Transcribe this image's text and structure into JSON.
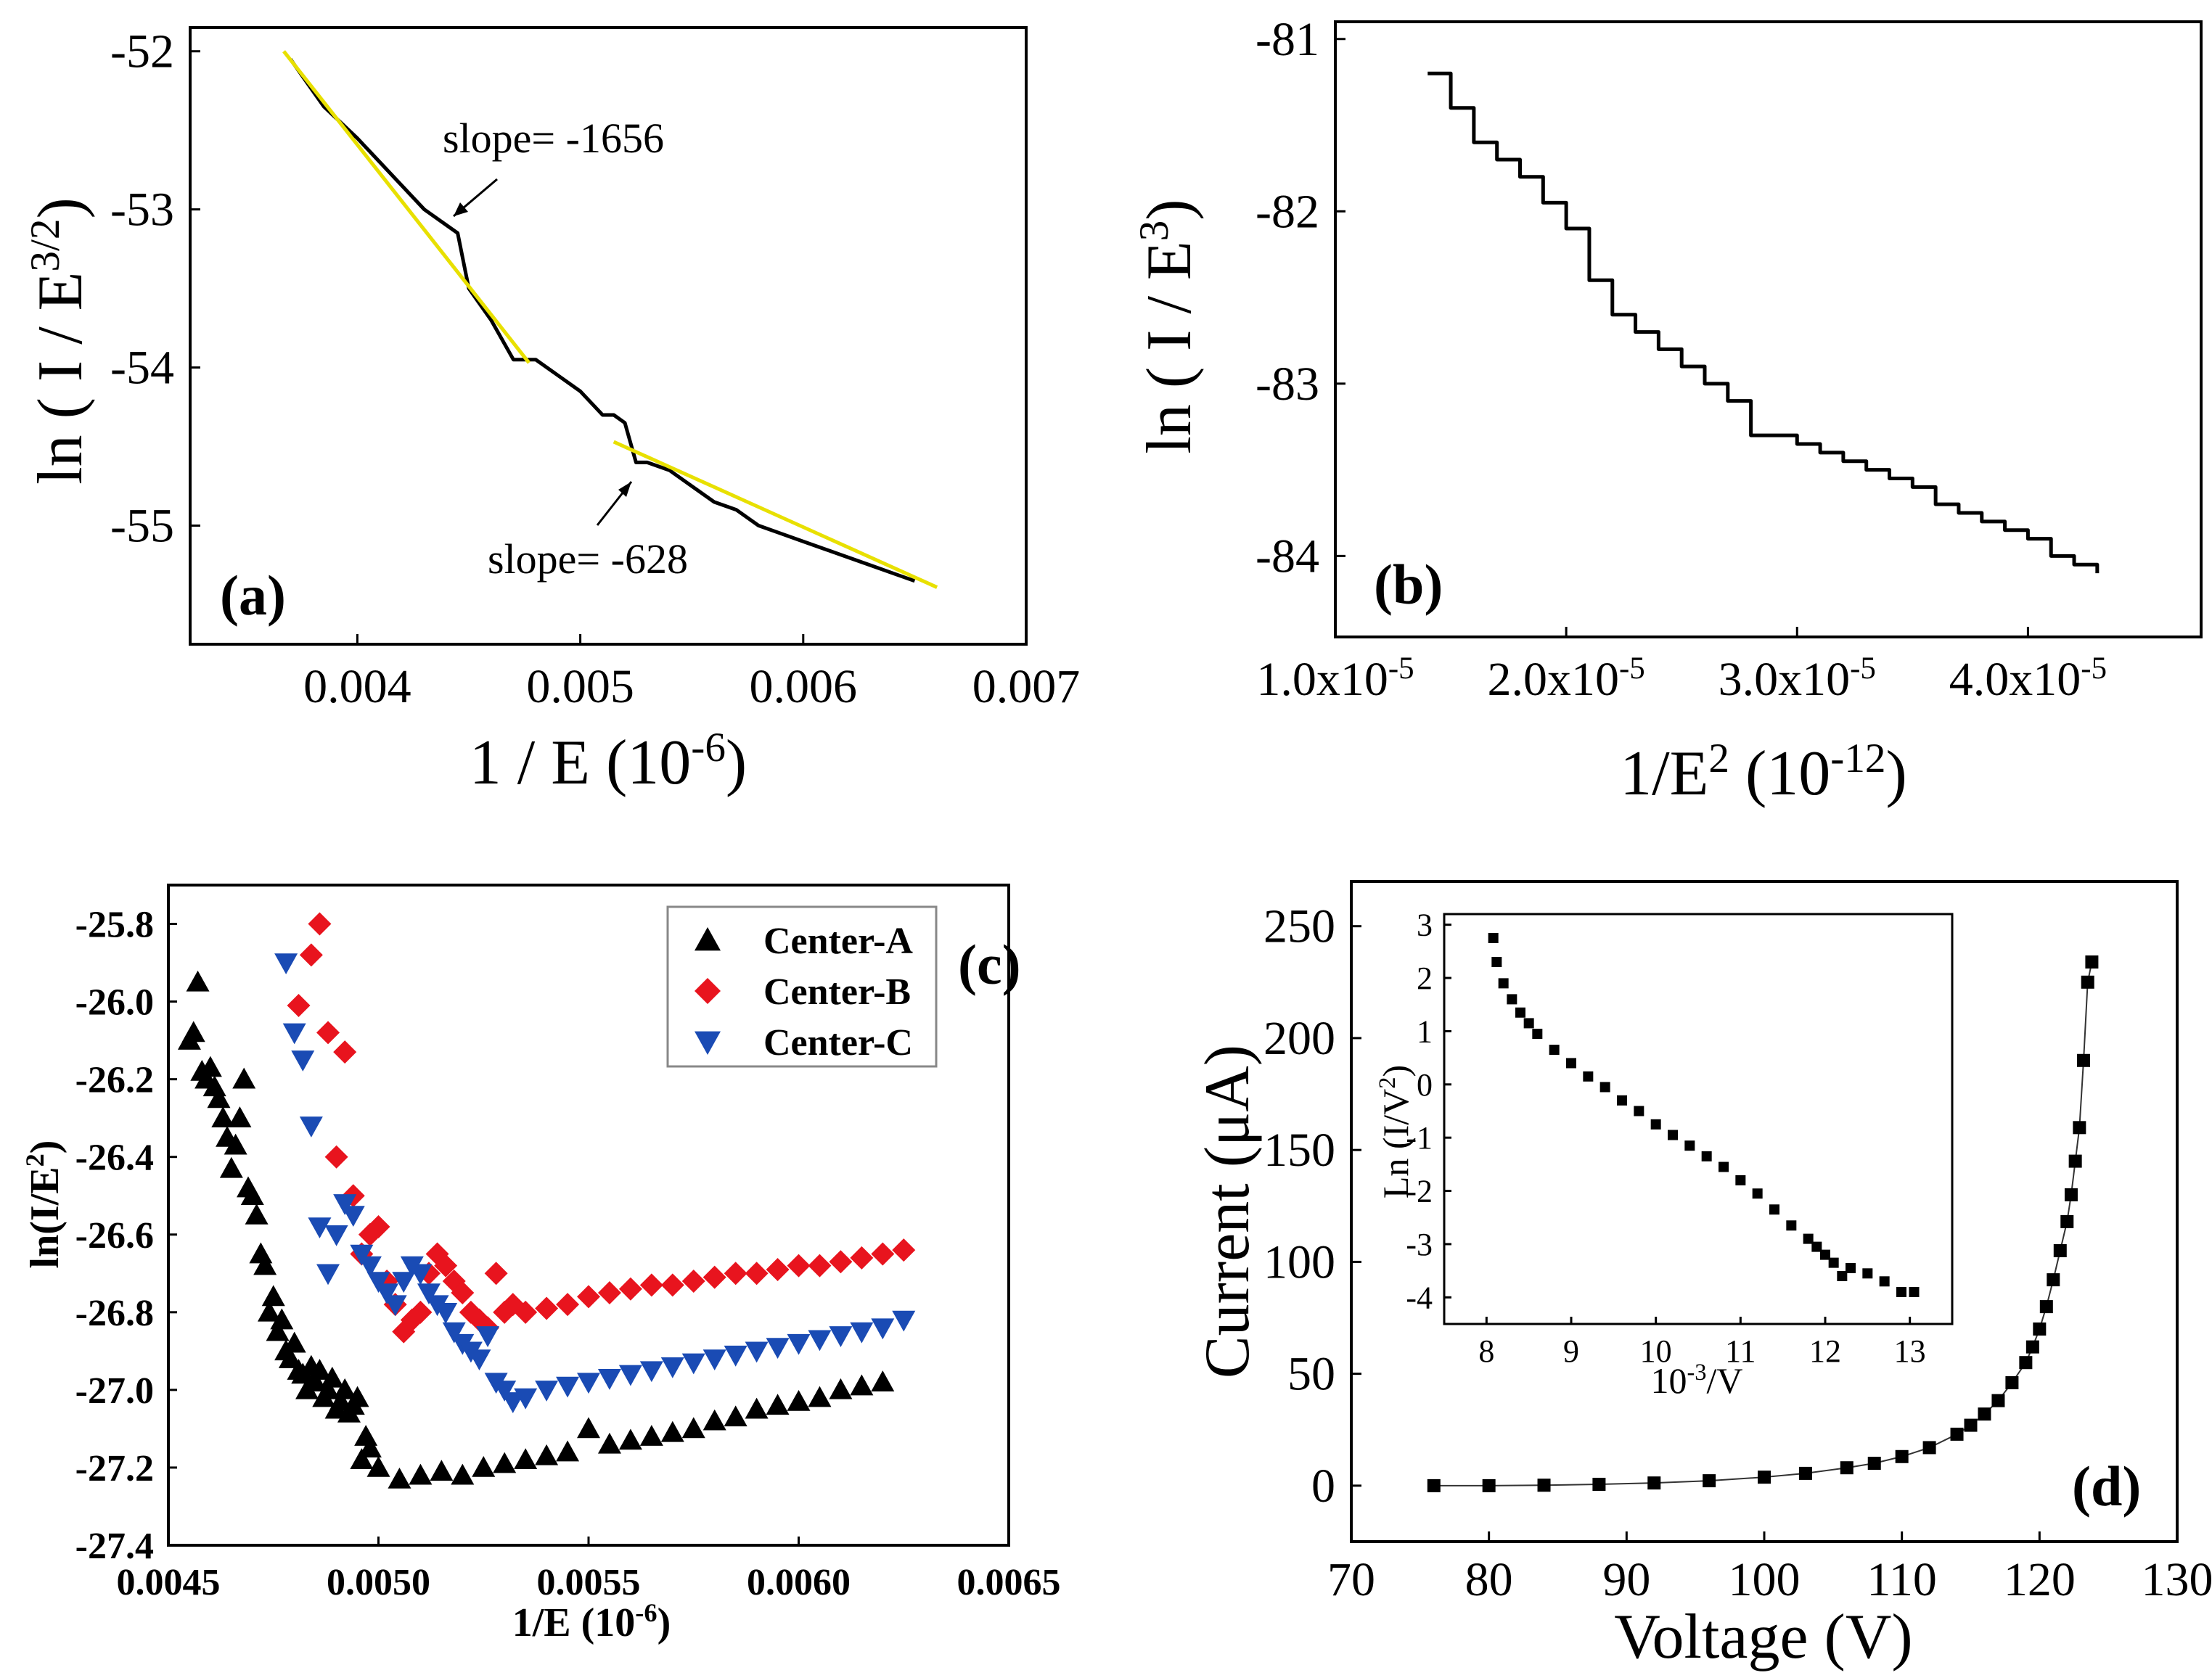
{
  "chart_data": [
    {
      "type": "line",
      "panel_label": "(a)",
      "xlabel": "1 / E (10",
      "xlabel_sup": "-6",
      "xlabel_end": ")",
      "ylabel": "ln ( I / E",
      "ylabel_sup": "3/2",
      "ylabel_end": ")",
      "xlim": [
        0.00325,
        0.007
      ],
      "ylim": [
        -55.75,
        -51.85
      ],
      "xticks": [
        0.004,
        0.005,
        0.006,
        0.007
      ],
      "xtick_labels": [
        "0.004",
        "0.005",
        "0.006",
        "0.007"
      ],
      "yticks": [
        -52,
        -53,
        -54,
        -55
      ],
      "ytick_labels": [
        "-52",
        "-53",
        "-54",
        "-55"
      ],
      "series": [
        {
          "name": "data",
          "color": "#000000",
          "x": [
            0.0037,
            0.00385,
            0.004,
            0.0041,
            0.0042,
            0.0043,
            0.0044,
            0.00445,
            0.0045,
            0.0046,
            0.0047,
            0.0048,
            0.0049,
            0.005,
            0.0051,
            0.00515,
            0.0052,
            0.00525,
            0.0053,
            0.0054,
            0.0055,
            0.0056,
            0.0057,
            0.0058,
            0.0059,
            0.006,
            0.0061,
            0.0062,
            0.0063,
            0.0064,
            0.0065
          ],
          "y": [
            -52.05,
            -52.35,
            -52.55,
            -52.7,
            -52.85,
            -53.0,
            -53.1,
            -53.15,
            -53.5,
            -53.7,
            -53.95,
            -53.95,
            -54.05,
            -54.15,
            -54.3,
            -54.3,
            -54.35,
            -54.6,
            -54.6,
            -54.65,
            -54.75,
            -54.85,
            -54.9,
            -55.0,
            -55.05,
            -55.1,
            -55.15,
            -55.2,
            -55.25,
            -55.3,
            -55.35
          ]
        }
      ],
      "fit_lines": [
        {
          "name": "fit-1",
          "color": "#e8e000",
          "x": [
            0.00367,
            0.00477
          ],
          "y": [
            -52.0,
            -53.97
          ]
        },
        {
          "name": "fit-2",
          "color": "#e8e000",
          "x": [
            0.00515,
            0.0066
          ],
          "y": [
            -54.47,
            -55.39
          ]
        }
      ],
      "annotations": [
        "slope= -1656",
        "slope= -628"
      ]
    },
    {
      "type": "line",
      "panel_label": "(b)",
      "xlabel": "1/E",
      "xlabel_sup1": "2",
      "xlabel_mid": " (10",
      "xlabel_sup2": "-12",
      "xlabel_end": ")",
      "ylabel": "ln ( I / E",
      "ylabel_sup": "3",
      "ylabel_end": ")",
      "xlim": [
        1e-05,
        4.75e-05
      ],
      "ylim": [
        -84.47,
        -80.9
      ],
      "xticks": [
        1e-05,
        2e-05,
        3e-05,
        4e-05
      ],
      "xtick_labels": [
        "1.0x10",
        "2.0x10",
        "3.0x10",
        "4.0x10"
      ],
      "xtick_exp": "-5",
      "yticks": [
        -81,
        -82,
        -83,
        -84
      ],
      "ytick_labels": [
        "-81",
        "-82",
        "-83",
        "-84"
      ],
      "series": [
        {
          "name": "data",
          "color": "#000000",
          "x": [
            1.4e-05,
            1.5e-05,
            1.6e-05,
            1.7e-05,
            1.8e-05,
            1.9e-05,
            2e-05,
            2.1e-05,
            2.2e-05,
            2.3e-05,
            2.4e-05,
            2.5e-05,
            2.6e-05,
            2.7e-05,
            2.8e-05,
            2.9e-05,
            3e-05,
            3.1e-05,
            3.2e-05,
            3.3e-05,
            3.4e-05,
            3.5e-05,
            3.6e-05,
            3.7e-05,
            3.8e-05,
            3.9e-05,
            4e-05,
            4.1e-05,
            4.2e-05,
            4.3e-05
          ],
          "y": [
            -81.2,
            -81.4,
            -81.6,
            -81.7,
            -81.8,
            -81.95,
            -82.1,
            -82.4,
            -82.6,
            -82.7,
            -82.8,
            -82.9,
            -83.0,
            -83.1,
            -83.3,
            -83.3,
            -83.35,
            -83.4,
            -83.45,
            -83.5,
            -83.55,
            -83.6,
            -83.7,
            -83.75,
            -83.8,
            -83.85,
            -83.9,
            -84.0,
            -84.05,
            -84.1
          ]
        }
      ]
    },
    {
      "type": "scatter",
      "panel_label": "(c)",
      "xlabel": "1/E (10",
      "xlabel_sup": "-6",
      "xlabel_end": ")",
      "ylabel": "ln(I/E",
      "ylabel_sup": "2",
      "ylabel_end": ")",
      "xlim": [
        0.0045,
        0.0065
      ],
      "ylim": [
        -27.4,
        -25.7
      ],
      "xticks": [
        0.0045,
        0.005,
        0.0055,
        0.006,
        0.0065
      ],
      "xtick_labels": [
        "0.0045",
        "0.0050",
        "0.0055",
        "0.0060",
        "0.0065"
      ],
      "yticks": [
        -25.8,
        -26.0,
        -26.2,
        -26.4,
        -26.6,
        -26.8,
        -27.0,
        -27.2,
        -27.4
      ],
      "ytick_labels": [
        "-25.8",
        "-26.0",
        "-26.2",
        "-26.4",
        "-26.6",
        "-26.8",
        "-27.0",
        "-27.2",
        "-27.4"
      ],
      "legend_position": "top-right",
      "series": [
        {
          "name": "Center-A",
          "marker": "triangle-up",
          "color": "#000000",
          "x": [
            0.00455,
            0.00456,
            0.00457,
            0.00458,
            0.00459,
            0.0046,
            0.00461,
            0.00462,
            0.00463,
            0.00464,
            0.00465,
            0.00466,
            0.00467,
            0.00468,
            0.00469,
            0.0047,
            0.00471,
            0.00472,
            0.00473,
            0.00474,
            0.00475,
            0.00476,
            0.00477,
            0.00478,
            0.00479,
            0.0048,
            0.00481,
            0.00482,
            0.00483,
            0.00484,
            0.00485,
            0.00486,
            0.00487,
            0.00488,
            0.00489,
            0.0049,
            0.00491,
            0.00492,
            0.00493,
            0.00494,
            0.00495,
            0.00496,
            0.00497,
            0.00498,
            0.005,
            0.00505,
            0.0051,
            0.00515,
            0.0052,
            0.00525,
            0.0053,
            0.00535,
            0.0054,
            0.00545,
            0.0055,
            0.00555,
            0.0056,
            0.00565,
            0.0057,
            0.00575,
            0.0058,
            0.00585,
            0.0059,
            0.00595,
            0.006,
            0.00605,
            0.0061,
            0.00615,
            0.0062
          ],
          "y": [
            -26.1,
            -26.08,
            -25.95,
            -26.18,
            -26.2,
            -26.17,
            -26.22,
            -26.25,
            -26.3,
            -26.35,
            -26.43,
            -26.37,
            -26.3,
            -26.2,
            -26.48,
            -26.5,
            -26.55,
            -26.65,
            -26.68,
            -26.8,
            -26.76,
            -26.85,
            -26.82,
            -26.9,
            -26.92,
            -26.88,
            -26.95,
            -26.96,
            -27.0,
            -26.94,
            -26.98,
            -26.95,
            -27.02,
            -27.0,
            -26.97,
            -27.05,
            -27.03,
            -27.0,
            -27.06,
            -27.04,
            -27.02,
            -27.18,
            -27.12,
            -27.15,
            -27.2,
            -27.23,
            -27.22,
            -27.21,
            -27.22,
            -27.2,
            -27.19,
            -27.18,
            -27.17,
            -27.16,
            -27.1,
            -27.14,
            -27.13,
            -27.12,
            -27.11,
            -27.1,
            -27.08,
            -27.07,
            -27.05,
            -27.04,
            -27.03,
            -27.02,
            -27.0,
            -26.99,
            -26.98
          ]
        },
        {
          "name": "Center-B",
          "marker": "diamond",
          "color": "#e8141e",
          "x": [
            0.00481,
            0.00484,
            0.00486,
            0.00488,
            0.0049,
            0.00492,
            0.00494,
            0.00496,
            0.00498,
            0.005,
            0.00502,
            0.00504,
            0.00506,
            0.00508,
            0.0051,
            0.00512,
            0.00514,
            0.00516,
            0.00518,
            0.0052,
            0.00522,
            0.00524,
            0.00526,
            0.00528,
            0.0053,
            0.00532,
            0.00535,
            0.0054,
            0.00545,
            0.0055,
            0.00555,
            0.0056,
            0.00565,
            0.0057,
            0.00575,
            0.0058,
            0.00585,
            0.0059,
            0.00595,
            0.006,
            0.00605,
            0.0061,
            0.00615,
            0.0062,
            0.00625
          ],
          "y": [
            -26.01,
            -25.88,
            -25.8,
            -26.08,
            -26.4,
            -26.13,
            -26.5,
            -26.65,
            -26.6,
            -26.58,
            -26.72,
            -26.78,
            -26.85,
            -26.82,
            -26.8,
            -26.7,
            -26.65,
            -26.68,
            -26.72,
            -26.75,
            -26.8,
            -26.82,
            -26.84,
            -26.7,
            -26.8,
            -26.78,
            -26.8,
            -26.79,
            -26.78,
            -26.76,
            -26.75,
            -26.74,
            -26.73,
            -26.73,
            -26.72,
            -26.71,
            -26.7,
            -26.7,
            -26.69,
            -26.68,
            -26.68,
            -26.67,
            -26.66,
            -26.65,
            -26.64
          ]
        },
        {
          "name": "Center-C",
          "marker": "triangle-down",
          "color": "#1a4bb4",
          "x": [
            0.00478,
            0.0048,
            0.00482,
            0.00484,
            0.00486,
            0.00488,
            0.0049,
            0.00492,
            0.00494,
            0.00496,
            0.00498,
            0.005,
            0.00502,
            0.00504,
            0.00506,
            0.00508,
            0.0051,
            0.00512,
            0.00514,
            0.00516,
            0.00518,
            0.0052,
            0.00522,
            0.00524,
            0.00526,
            0.00528,
            0.0053,
            0.00532,
            0.00535,
            0.0054,
            0.00545,
            0.0055,
            0.00555,
            0.0056,
            0.00565,
            0.0057,
            0.00575,
            0.0058,
            0.00585,
            0.0059,
            0.00595,
            0.006,
            0.00605,
            0.0061,
            0.00615,
            0.0062,
            0.00625
          ],
          "y": [
            -25.9,
            -26.08,
            -26.15,
            -26.32,
            -26.58,
            -26.7,
            -26.6,
            -26.52,
            -26.55,
            -26.65,
            -26.68,
            -26.72,
            -26.75,
            -26.78,
            -26.72,
            -26.68,
            -26.7,
            -26.75,
            -26.78,
            -26.8,
            -26.85,
            -26.88,
            -26.9,
            -26.92,
            -26.86,
            -26.98,
            -27.0,
            -27.03,
            -27.02,
            -27.0,
            -26.99,
            -26.98,
            -26.97,
            -26.96,
            -26.95,
            -26.94,
            -26.93,
            -26.92,
            -26.91,
            -26.9,
            -26.89,
            -26.88,
            -26.87,
            -26.86,
            -26.85,
            -26.84,
            -26.82
          ]
        }
      ]
    },
    {
      "type": "line",
      "panel_label": "(d)",
      "xlabel": "Voltage (V)",
      "ylabel": "Current (μA)",
      "xlim": [
        70,
        130
      ],
      "ylim": [
        -25,
        270
      ],
      "xticks": [
        70,
        80,
        90,
        100,
        110,
        120,
        130
      ],
      "xtick_labels": [
        "70",
        "80",
        "90",
        "100",
        "110",
        "120",
        "130"
      ],
      "yticks": [
        0,
        50,
        100,
        150,
        200,
        250
      ],
      "ytick_labels": [
        "0",
        "50",
        "100",
        "150",
        "200",
        "250"
      ],
      "series": [
        {
          "name": "I-V",
          "marker": "square",
          "color": "#000000",
          "x": [
            76,
            80,
            84,
            88,
            92,
            96,
            100,
            103,
            106,
            108,
            110,
            112,
            114,
            115,
            116,
            117,
            118,
            119,
            119.5,
            120,
            120.5,
            121,
            121.5,
            122,
            122.3,
            122.6,
            122.9,
            123.2,
            123.5,
            123.8
          ],
          "y": [
            0,
            0,
            0.2,
            0.6,
            1.2,
            2.2,
            3.8,
            5.5,
            8,
            10,
            13,
            17,
            23,
            27,
            32,
            38,
            46,
            55,
            62,
            70,
            80,
            92,
            105,
            118,
            130,
            145,
            160,
            190,
            225,
            234
          ]
        }
      ],
      "inset": {
        "type": "scatter",
        "xlabel": "10",
        "xlabel_sup": "-3",
        "xlabel_end": "/V",
        "ylabel": "Ln (I/V",
        "ylabel_sup": "2",
        "ylabel_end": ")",
        "xlim": [
          7.5,
          13.5
        ],
        "ylim": [
          -4.5,
          3.2
        ],
        "xticks": [
          8,
          9,
          10,
          11,
          12,
          13
        ],
        "xtick_labels": [
          "8",
          "9",
          "10",
          "11",
          "12",
          "13"
        ],
        "yticks": [
          3,
          2,
          1,
          0,
          -1,
          -2,
          -3,
          -4
        ],
        "ytick_labels": [
          "3",
          "2",
          "1",
          "0",
          "-1",
          "-2",
          "-3",
          "-4"
        ],
        "series": [
          {
            "name": "FN",
            "marker": "square",
            "color": "#000000",
            "x": [
              8.08,
              8.12,
              8.2,
              8.3,
              8.4,
              8.5,
              8.6,
              8.8,
              9.0,
              9.2,
              9.4,
              9.6,
              9.8,
              10.0,
              10.2,
              10.4,
              10.6,
              10.8,
              11.0,
              11.2,
              11.4,
              11.6,
              11.8,
              11.9,
              12.0,
              12.1,
              12.2,
              12.3,
              12.5,
              12.7,
              12.9,
              13.05
            ],
            "y": [
              2.75,
              2.3,
              1.9,
              1.6,
              1.35,
              1.15,
              0.95,
              0.65,
              0.4,
              0.15,
              -0.05,
              -0.3,
              -0.5,
              -0.75,
              -0.95,
              -1.15,
              -1.35,
              -1.55,
              -1.8,
              -2.05,
              -2.35,
              -2.65,
              -2.9,
              -3.05,
              -3.2,
              -3.35,
              -3.6,
              -3.45,
              -3.55,
              -3.7,
              -3.9,
              -3.9
            ]
          }
        ]
      }
    }
  ]
}
